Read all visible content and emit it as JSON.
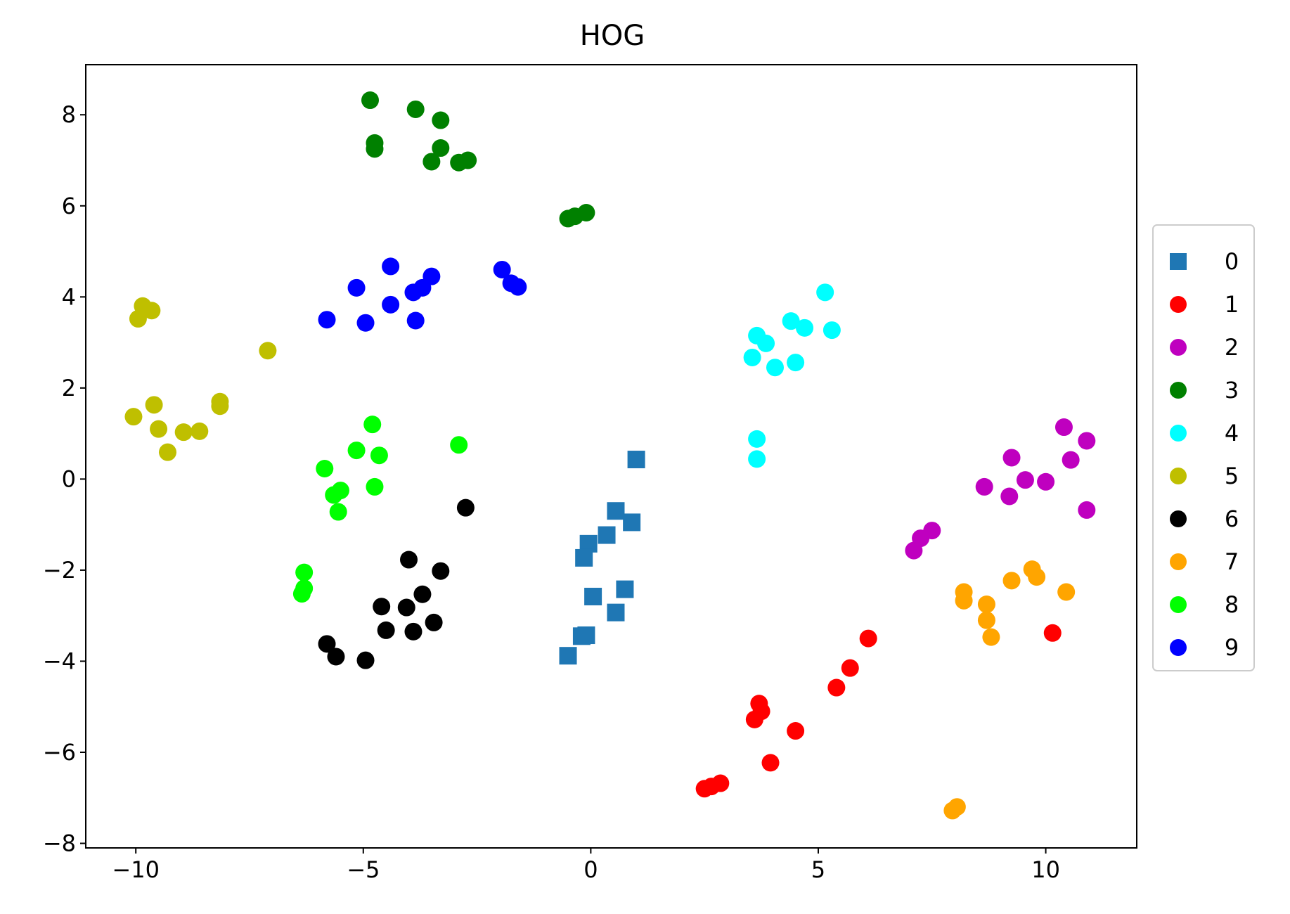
{
  "chart_data": {
    "type": "scatter",
    "title": "HOG",
    "xlabel": "",
    "ylabel": "",
    "xlim": [
      -11.1,
      12.0
    ],
    "ylim": [
      -8.1,
      9.1
    ],
    "xticks": [
      {
        "value": -10,
        "label": "−10"
      },
      {
        "value": -5,
        "label": "−5"
      },
      {
        "value": 0,
        "label": "0"
      },
      {
        "value": 5,
        "label": "5"
      },
      {
        "value": 10,
        "label": "10"
      }
    ],
    "yticks": [
      {
        "value": -8,
        "label": "−8"
      },
      {
        "value": -6,
        "label": "−6"
      },
      {
        "value": -4,
        "label": "−4"
      },
      {
        "value": -2,
        "label": "−2"
      },
      {
        "value": 0,
        "label": "0"
      },
      {
        "value": 2,
        "label": "2"
      },
      {
        "value": 4,
        "label": "4"
      },
      {
        "value": 6,
        "label": "6"
      },
      {
        "value": 8,
        "label": "8"
      }
    ],
    "grid": false,
    "legend_position": "center-right-outside",
    "series": [
      {
        "name": "0",
        "color": "#1f77b4",
        "marker": "square",
        "points": [
          [
            1.0,
            0.43
          ],
          [
            0.55,
            -0.7
          ],
          [
            0.9,
            -0.95
          ],
          [
            0.35,
            -1.23
          ],
          [
            -0.05,
            -1.42
          ],
          [
            -0.15,
            -1.73
          ],
          [
            0.05,
            -2.58
          ],
          [
            0.75,
            -2.42
          ],
          [
            0.55,
            -2.93
          ],
          [
            -0.2,
            -3.45
          ],
          [
            -0.1,
            -3.43
          ],
          [
            -0.5,
            -3.88
          ]
        ]
      },
      {
        "name": "1",
        "color": "#ff0000",
        "marker": "circle",
        "points": [
          [
            6.1,
            -3.5
          ],
          [
            5.7,
            -4.15
          ],
          [
            5.4,
            -4.58
          ],
          [
            3.7,
            -4.93
          ],
          [
            3.75,
            -5.1
          ],
          [
            3.6,
            -5.28
          ],
          [
            4.5,
            -5.53
          ],
          [
            3.95,
            -6.23
          ],
          [
            2.85,
            -6.68
          ],
          [
            2.65,
            -6.75
          ],
          [
            2.5,
            -6.8
          ],
          [
            10.15,
            -3.38
          ]
        ]
      },
      {
        "name": "2",
        "color": "#bf00bf",
        "marker": "circle",
        "points": [
          [
            10.4,
            1.14
          ],
          [
            10.9,
            0.84
          ],
          [
            10.55,
            0.42
          ],
          [
            9.25,
            0.47
          ],
          [
            9.55,
            -0.02
          ],
          [
            10.0,
            -0.06
          ],
          [
            8.65,
            -0.17
          ],
          [
            9.2,
            -0.38
          ],
          [
            10.9,
            -0.68
          ],
          [
            7.5,
            -1.13
          ],
          [
            7.25,
            -1.3
          ],
          [
            7.1,
            -1.57
          ]
        ]
      },
      {
        "name": "3",
        "color": "#008000",
        "marker": "circle",
        "points": [
          [
            -4.85,
            8.32
          ],
          [
            -3.85,
            8.12
          ],
          [
            -3.3,
            7.88
          ],
          [
            -4.75,
            7.38
          ],
          [
            -4.75,
            7.25
          ],
          [
            -3.3,
            7.27
          ],
          [
            -3.5,
            6.97
          ],
          [
            -2.9,
            6.95
          ],
          [
            -2.7,
            7.0
          ],
          [
            -0.5,
            5.72
          ],
          [
            -0.35,
            5.77
          ],
          [
            -0.1,
            5.85
          ]
        ]
      },
      {
        "name": "4",
        "color": "#00ffff",
        "marker": "circle",
        "points": [
          [
            5.15,
            4.1
          ],
          [
            4.4,
            3.47
          ],
          [
            4.7,
            3.32
          ],
          [
            5.3,
            3.27
          ],
          [
            3.65,
            3.15
          ],
          [
            3.85,
            2.98
          ],
          [
            3.55,
            2.67
          ],
          [
            4.5,
            2.56
          ],
          [
            4.05,
            2.45
          ],
          [
            3.65,
            0.88
          ],
          [
            3.65,
            0.44
          ]
        ]
      },
      {
        "name": "5",
        "color": "#bfbf00",
        "marker": "circle",
        "points": [
          [
            -9.85,
            3.8
          ],
          [
            -9.65,
            3.7
          ],
          [
            -9.95,
            3.52
          ],
          [
            -7.1,
            2.82
          ],
          [
            -8.15,
            1.7
          ],
          [
            -8.15,
            1.6
          ],
          [
            -9.6,
            1.63
          ],
          [
            -10.05,
            1.37
          ],
          [
            -9.5,
            1.1
          ],
          [
            -8.95,
            1.03
          ],
          [
            -8.6,
            1.05
          ],
          [
            -9.3,
            0.59
          ]
        ]
      },
      {
        "name": "6",
        "color": "#000000",
        "marker": "circle",
        "points": [
          [
            -2.75,
            -0.63
          ],
          [
            -4.0,
            -1.77
          ],
          [
            -3.3,
            -2.02
          ],
          [
            -3.7,
            -2.53
          ],
          [
            -4.6,
            -2.8
          ],
          [
            -4.05,
            -2.82
          ],
          [
            -3.45,
            -3.15
          ],
          [
            -4.5,
            -3.32
          ],
          [
            -3.9,
            -3.35
          ],
          [
            -5.8,
            -3.62
          ],
          [
            -5.6,
            -3.9
          ],
          [
            -4.95,
            -3.98
          ]
        ]
      },
      {
        "name": "7",
        "color": "#ffa500",
        "marker": "circle",
        "points": [
          [
            9.7,
            -1.98
          ],
          [
            9.8,
            -2.15
          ],
          [
            9.25,
            -2.23
          ],
          [
            10.45,
            -2.48
          ],
          [
            8.2,
            -2.48
          ],
          [
            8.2,
            -2.67
          ],
          [
            8.7,
            -2.75
          ],
          [
            8.7,
            -3.1
          ],
          [
            8.8,
            -3.47
          ],
          [
            8.05,
            -7.2
          ],
          [
            7.95,
            -7.28
          ]
        ]
      },
      {
        "name": "8",
        "color": "#00ff00",
        "marker": "circle",
        "points": [
          [
            -4.8,
            1.2
          ],
          [
            -2.9,
            0.75
          ],
          [
            -5.15,
            0.63
          ],
          [
            -4.65,
            0.52
          ],
          [
            -5.85,
            0.23
          ],
          [
            -5.5,
            -0.25
          ],
          [
            -4.75,
            -0.17
          ],
          [
            -5.65,
            -0.35
          ],
          [
            -5.55,
            -0.72
          ],
          [
            -6.3,
            -2.05
          ],
          [
            -6.3,
            -2.4
          ],
          [
            -6.35,
            -2.52
          ]
        ]
      },
      {
        "name": "9",
        "color": "#0000ff",
        "marker": "circle",
        "points": [
          [
            -4.4,
            4.67
          ],
          [
            -3.5,
            4.45
          ],
          [
            -1.95,
            4.6
          ],
          [
            -5.15,
            4.2
          ],
          [
            -3.7,
            4.2
          ],
          [
            -1.75,
            4.3
          ],
          [
            -1.6,
            4.22
          ],
          [
            -3.9,
            4.1
          ],
          [
            -5.8,
            3.5
          ],
          [
            -4.95,
            3.43
          ],
          [
            -4.4,
            3.83
          ],
          [
            -3.85,
            3.48
          ]
        ]
      }
    ]
  }
}
